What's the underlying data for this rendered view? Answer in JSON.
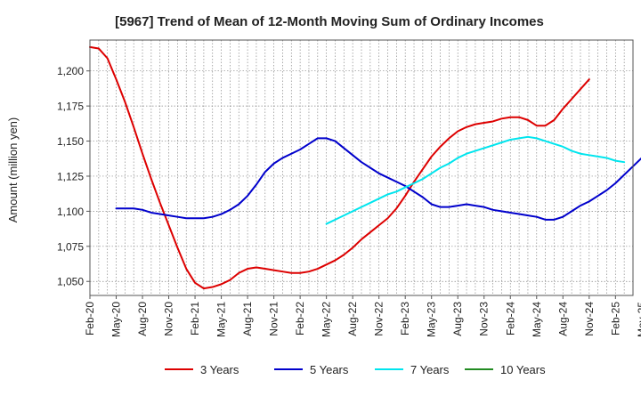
{
  "chart_data": {
    "type": "line",
    "title": "[5967]  Trend of Mean of 12-Month Moving Sum of Ordinary Incomes",
    "xlabel": "",
    "ylabel": "Amount (million yen)",
    "ylim": [
      1040,
      1222
    ],
    "yticks": [
      1050,
      1075,
      1100,
      1125,
      1150,
      1175,
      1200
    ],
    "ytick_labels": [
      "1,050",
      "1,075",
      "1,100",
      "1,125",
      "1,150",
      "1,175",
      "1,200"
    ],
    "x_start": "Feb-20",
    "x_months": 63,
    "xtick_labels": [
      "Feb-20",
      "May-20",
      "Aug-20",
      "Nov-20",
      "Feb-21",
      "May-21",
      "Aug-21",
      "Nov-21",
      "Feb-22",
      "May-22",
      "Aug-22",
      "Nov-22",
      "Feb-23",
      "May-23",
      "Aug-23",
      "Nov-23",
      "Feb-24",
      "May-24",
      "Aug-24",
      "Nov-24",
      "Feb-25",
      "May-25"
    ],
    "grid": true,
    "legend_position": "bottom",
    "series": [
      {
        "name": "3 Years",
        "color": "#dd0000",
        "start_index": 0,
        "values": [
          1217,
          1216,
          1209,
          1194,
          1178,
          1160,
          1141,
          1123,
          1106,
          1090,
          1074,
          1059,
          1049,
          1045,
          1046,
          1048,
          1051,
          1056,
          1059,
          1060,
          1059,
          1058,
          1057,
          1056,
          1056,
          1057,
          1059,
          1062,
          1065,
          1069,
          1074,
          1080,
          1085,
          1090,
          1095,
          1102,
          1111,
          1121,
          1130,
          1139,
          1146,
          1152,
          1157,
          1160,
          1162,
          1163,
          1164,
          1166,
          1167,
          1167,
          1165,
          1161,
          1161,
          1165,
          1173,
          1180,
          1187,
          1194
        ]
      },
      {
        "name": "5 Years",
        "color": "#0000cc",
        "start_index": 3,
        "values": [
          1102,
          1102,
          1102,
          1101,
          1099,
          1098,
          1097,
          1096,
          1095,
          1095,
          1095,
          1096,
          1098,
          1101,
          1105,
          1111,
          1119,
          1128,
          1134,
          1138,
          1141,
          1144,
          1148,
          1152,
          1152,
          1150,
          1145,
          1140,
          1135,
          1131,
          1127,
          1124,
          1121,
          1118,
          1114,
          1110,
          1105,
          1103,
          1103,
          1104,
          1105,
          1104,
          1103,
          1101,
          1100,
          1099,
          1098,
          1097,
          1096,
          1094,
          1094,
          1096,
          1100,
          1104,
          1107,
          1111,
          1115,
          1120,
          1126,
          1132,
          1138
        ]
      },
      {
        "name": "7 Years",
        "color": "#00e5ee",
        "start_index": 27,
        "values": [
          1091,
          1094,
          1097,
          1100,
          1103,
          1106,
          1109,
          1112,
          1114,
          1117,
          1120,
          1123,
          1127,
          1131,
          1134,
          1138,
          1141,
          1143,
          1145,
          1147,
          1149,
          1151,
          1152,
          1153,
          1152,
          1150,
          1148,
          1146,
          1143,
          1141,
          1140,
          1139,
          1138,
          1136,
          1135
        ]
      },
      {
        "name": "10 Years",
        "color": "#228b22",
        "start_index": 0,
        "values": []
      }
    ]
  }
}
